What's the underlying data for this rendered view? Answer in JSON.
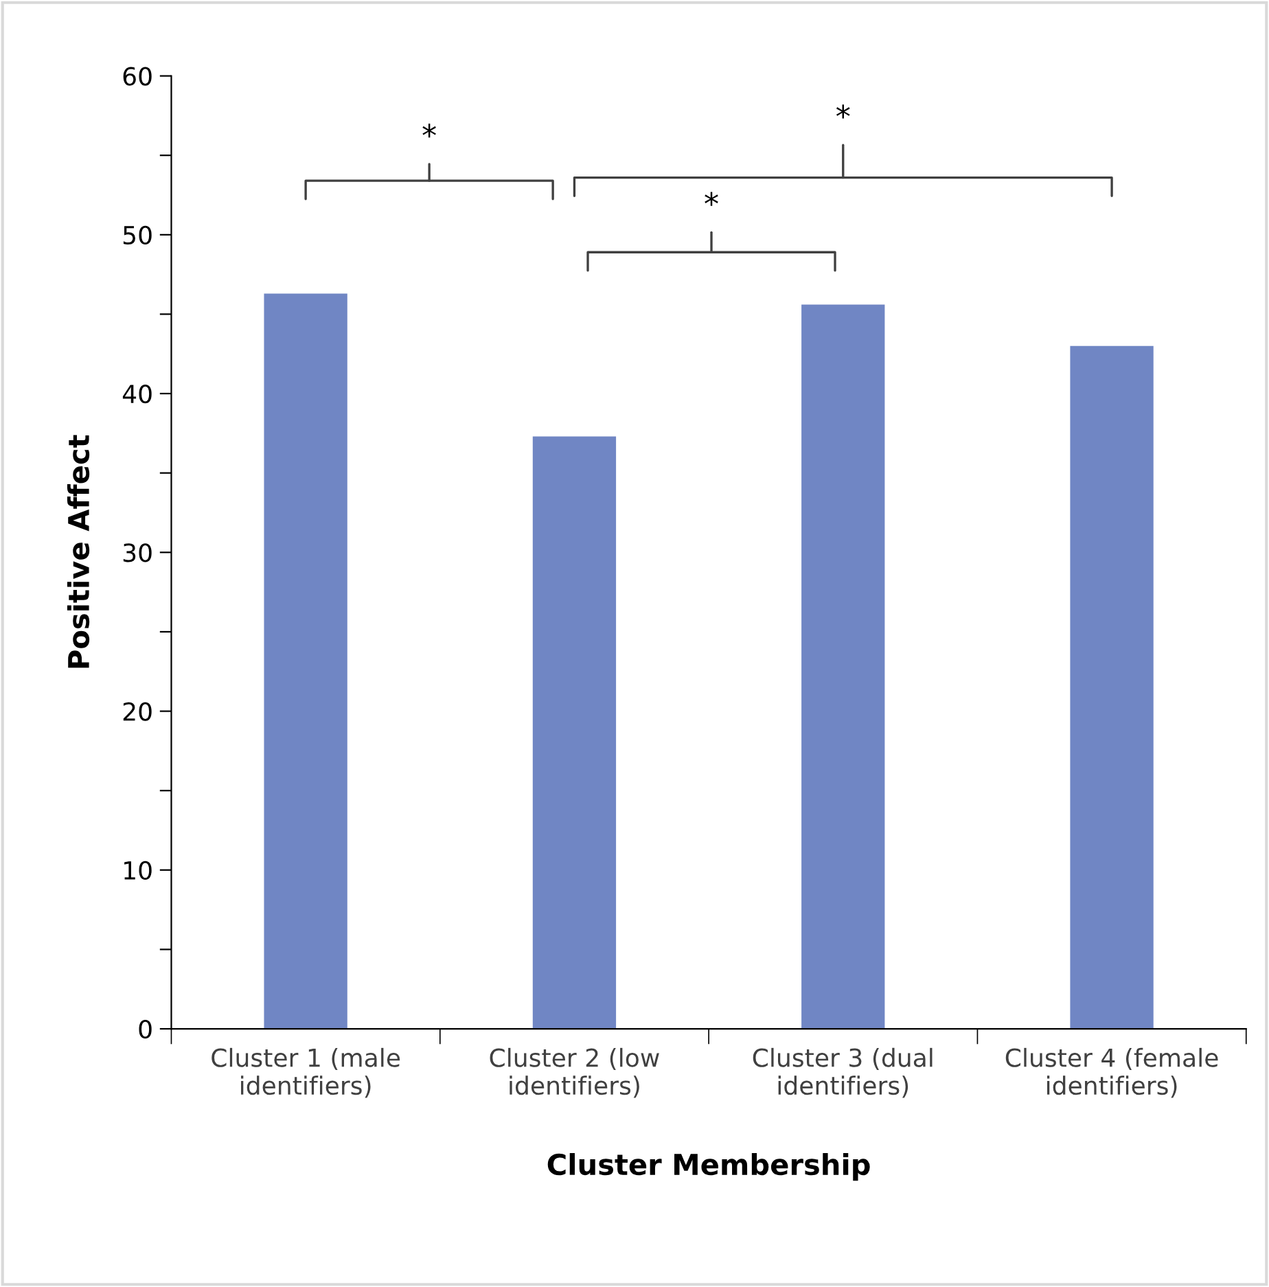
{
  "chart_data": {
    "type": "bar",
    "xlabel": "Cluster Membership",
    "ylabel": "Positive Affect",
    "categories": [
      "Cluster 1 (male\nidentifiers)",
      "Cluster 2 (low\nidentifiers)",
      "Cluster 3 (dual\nidentifiers)",
      "Cluster 4 (female\nidentifiers)"
    ],
    "values": [
      46.3,
      37.3,
      45.6,
      43.0
    ],
    "color": "#7086c4",
    "ylim": [
      0,
      60
    ],
    "yticks": [
      0,
      {
        "value": 5,
        "label": null
      },
      10,
      {
        "value": 15,
        "label": null
      },
      20,
      {
        "value": 25,
        "label": null
      },
      30,
      {
        "value": 35,
        "label": null
      },
      40,
      {
        "value": 45,
        "label": null
      },
      50,
      {
        "value": 55,
        "label": null
      },
      60
    ],
    "grid": false,
    "annotations": [
      "*",
      "*",
      "*"
    ]
  }
}
